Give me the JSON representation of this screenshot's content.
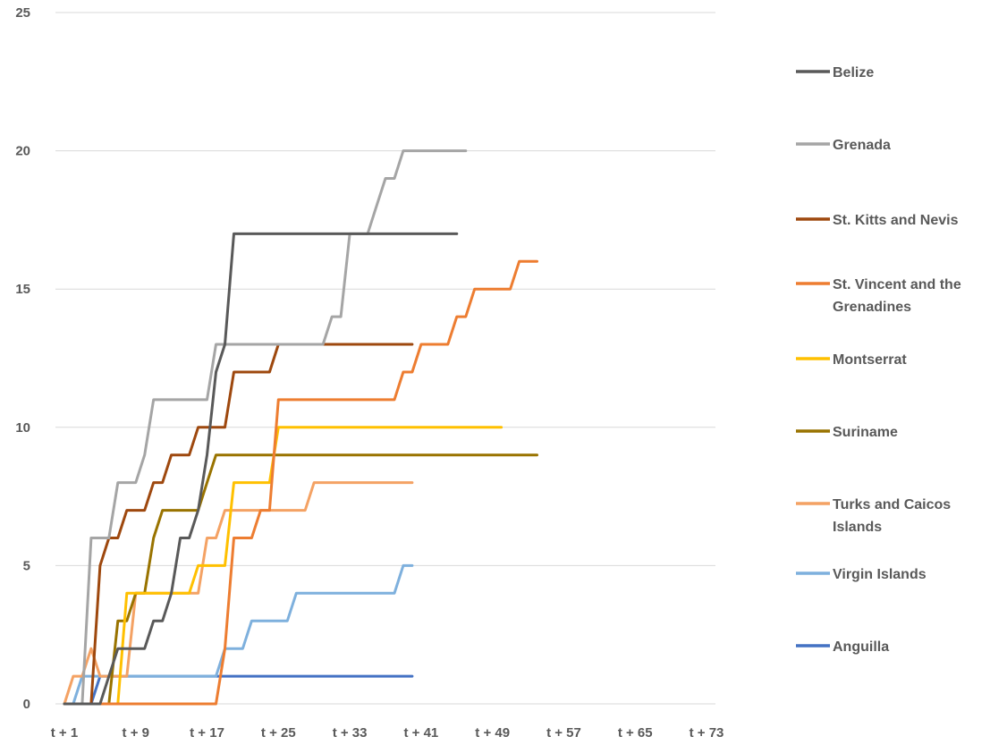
{
  "chart_data": {
    "type": "line",
    "title": "",
    "xlabel": "",
    "ylabel": "",
    "x_tick_labels": [
      "t + 1",
      "t + 9",
      "t + 17",
      "t + 25",
      "t + 33",
      "t + 41",
      "t + 49",
      "t + 57",
      "t + 65",
      "t + 73"
    ],
    "x_tick_values": [
      1,
      9,
      17,
      25,
      33,
      41,
      49,
      57,
      65,
      73
    ],
    "xlim": [
      0,
      74
    ],
    "ylim": [
      0,
      25
    ],
    "y_ticks": [
      0,
      5,
      10,
      15,
      20,
      25
    ],
    "grid": "horizontal",
    "legend_position": "right",
    "series": [
      {
        "name": "Belize",
        "color": "#595959",
        "x": [
          1,
          2,
          3,
          4,
          5,
          6,
          7,
          8,
          9,
          10,
          11,
          12,
          13,
          14,
          15,
          16,
          17,
          18,
          19,
          20,
          21,
          22,
          23,
          24,
          25,
          26,
          27,
          28,
          29,
          30,
          31,
          32,
          33,
          34,
          35,
          36,
          37,
          38,
          39,
          40,
          41,
          42,
          43,
          44,
          45
        ],
        "y": [
          0,
          0,
          0,
          0,
          0,
          1,
          2,
          2,
          2,
          2,
          3,
          3,
          4,
          6,
          6,
          7,
          9,
          12,
          13,
          17,
          17,
          17,
          17,
          17,
          17,
          17,
          17,
          17,
          17,
          17,
          17,
          17,
          17,
          17,
          17,
          17,
          17,
          17,
          17,
          17,
          17,
          17,
          17,
          17,
          17
        ]
      },
      {
        "name": "Grenada",
        "color": "#a5a5a5",
        "x": [
          1,
          2,
          3,
          4,
          5,
          6,
          7,
          8,
          9,
          10,
          11,
          12,
          13,
          14,
          15,
          16,
          17,
          18,
          19,
          20,
          21,
          22,
          23,
          24,
          25,
          26,
          27,
          28,
          29,
          30,
          31,
          32,
          33,
          34,
          35,
          36,
          37,
          38,
          39,
          40,
          41,
          42,
          43,
          44,
          45,
          46
        ],
        "y": [
          0,
          0,
          0,
          6,
          6,
          6,
          8,
          8,
          8,
          9,
          11,
          11,
          11,
          11,
          11,
          11,
          11,
          13,
          13,
          13,
          13,
          13,
          13,
          13,
          13,
          13,
          13,
          13,
          13,
          13,
          14,
          14,
          17,
          17,
          17,
          18,
          19,
          19,
          20,
          20,
          20,
          20,
          20,
          20,
          20,
          20
        ]
      },
      {
        "name": "St. Kitts and Nevis",
        "color": "#9e480e",
        "x": [
          1,
          2,
          3,
          4,
          5,
          6,
          7,
          8,
          9,
          10,
          11,
          12,
          13,
          14,
          15,
          16,
          17,
          18,
          19,
          20,
          21,
          22,
          23,
          24,
          25,
          26,
          27,
          28,
          29,
          30,
          31,
          32,
          33,
          34,
          35,
          36,
          37,
          38,
          39,
          40
        ],
        "y": [
          0,
          0,
          0,
          0,
          5,
          6,
          6,
          7,
          7,
          7,
          8,
          8,
          9,
          9,
          9,
          10,
          10,
          10,
          10,
          12,
          12,
          12,
          12,
          12,
          13,
          13,
          13,
          13,
          13,
          13,
          13,
          13,
          13,
          13,
          13,
          13,
          13,
          13,
          13,
          13
        ]
      },
      {
        "name": "St. Vincent and the Grenadines",
        "color": "#ed7d31",
        "x": [
          1,
          2,
          3,
          4,
          5,
          6,
          7,
          8,
          9,
          10,
          11,
          12,
          13,
          14,
          15,
          16,
          17,
          18,
          19,
          20,
          21,
          22,
          23,
          24,
          25,
          26,
          27,
          28,
          29,
          30,
          31,
          32,
          33,
          34,
          35,
          36,
          37,
          38,
          39,
          40,
          41,
          42,
          43,
          44,
          45,
          46,
          47,
          48,
          49,
          50,
          51,
          52,
          53,
          54
        ],
        "y": [
          0,
          0,
          0,
          0,
          0,
          0,
          0,
          0,
          0,
          0,
          0,
          0,
          0,
          0,
          0,
          0,
          0,
          0,
          2,
          6,
          6,
          6,
          7,
          7,
          11,
          11,
          11,
          11,
          11,
          11,
          11,
          11,
          11,
          11,
          11,
          11,
          11,
          11,
          12,
          12,
          13,
          13,
          13,
          13,
          14,
          14,
          15,
          15,
          15,
          15,
          15,
          16,
          16,
          16
        ]
      },
      {
        "name": "Montserrat",
        "color": "#ffc000",
        "x": [
          1,
          2,
          3,
          4,
          5,
          6,
          7,
          8,
          9,
          10,
          11,
          12,
          13,
          14,
          15,
          16,
          17,
          18,
          19,
          20,
          21,
          22,
          23,
          24,
          25,
          26,
          27,
          28,
          29,
          30,
          31,
          32,
          33,
          34,
          35,
          36,
          37,
          38,
          39,
          40,
          41,
          42,
          43,
          44,
          45,
          46,
          47,
          48,
          49,
          50
        ],
        "y": [
          0,
          0,
          0,
          0,
          0,
          0,
          0,
          4,
          4,
          4,
          4,
          4,
          4,
          4,
          4,
          5,
          5,
          5,
          5,
          8,
          8,
          8,
          8,
          8,
          10,
          10,
          10,
          10,
          10,
          10,
          10,
          10,
          10,
          10,
          10,
          10,
          10,
          10,
          10,
          10,
          10,
          10,
          10,
          10,
          10,
          10,
          10,
          10,
          10,
          10
        ]
      },
      {
        "name": "Suriname",
        "color": "#997300",
        "x": [
          1,
          2,
          3,
          4,
          5,
          6,
          7,
          8,
          9,
          10,
          11,
          12,
          13,
          14,
          15,
          16,
          17,
          18,
          19,
          20,
          21,
          22,
          23,
          24,
          25,
          26,
          27,
          28,
          29,
          30,
          31,
          32,
          33,
          34,
          35,
          36,
          37,
          38,
          39,
          40,
          41,
          42,
          43,
          44,
          45,
          46,
          47,
          48,
          49,
          50,
          51,
          52,
          53,
          54
        ],
        "y": [
          0,
          0,
          0,
          0,
          0,
          0,
          3,
          3,
          4,
          4,
          6,
          7,
          7,
          7,
          7,
          7,
          8,
          9,
          9,
          9,
          9,
          9,
          9,
          9,
          9,
          9,
          9,
          9,
          9,
          9,
          9,
          9,
          9,
          9,
          9,
          9,
          9,
          9,
          9,
          9,
          9,
          9,
          9,
          9,
          9,
          9,
          9,
          9,
          9,
          9,
          9,
          9,
          9,
          9
        ]
      },
      {
        "name": "Turks and Caicos Islands",
        "color": "#f4a264",
        "x": [
          1,
          2,
          3,
          4,
          5,
          6,
          7,
          8,
          9,
          10,
          11,
          12,
          13,
          14,
          15,
          16,
          17,
          18,
          19,
          20,
          21,
          22,
          23,
          24,
          25,
          26,
          27,
          28,
          29,
          30,
          31,
          32,
          33,
          34,
          35,
          36,
          37,
          38,
          39,
          40
        ],
        "y": [
          0,
          1,
          1,
          2,
          1,
          1,
          1,
          1,
          4,
          4,
          4,
          4,
          4,
          4,
          4,
          4,
          6,
          6,
          7,
          7,
          7,
          7,
          7,
          7,
          7,
          7,
          7,
          7,
          8,
          8,
          8,
          8,
          8,
          8,
          8,
          8,
          8,
          8,
          8,
          8
        ]
      },
      {
        "name": "Virgin Islands",
        "color": "#7eb0dd",
        "x": [
          1,
          2,
          3,
          4,
          5,
          6,
          7,
          8,
          9,
          10,
          11,
          12,
          13,
          14,
          15,
          16,
          17,
          18,
          19,
          20,
          21,
          22,
          23,
          24,
          25,
          26,
          27,
          28,
          29,
          30,
          31,
          32,
          33,
          34,
          35,
          36,
          37,
          38,
          39,
          40
        ],
        "y": [
          0,
          0,
          1,
          1,
          1,
          1,
          1,
          1,
          1,
          1,
          1,
          1,
          1,
          1,
          1,
          1,
          1,
          1,
          2,
          2,
          2,
          3,
          3,
          3,
          3,
          3,
          4,
          4,
          4,
          4,
          4,
          4,
          4,
          4,
          4,
          4,
          4,
          4,
          5,
          5
        ]
      },
      {
        "name": "Anguilla",
        "color": "#4472c4",
        "x": [
          1,
          2,
          3,
          4,
          5,
          6,
          7,
          8,
          9,
          10,
          11,
          12,
          13,
          14,
          15,
          16,
          17,
          18,
          19,
          20,
          21,
          22,
          23,
          24,
          25,
          26,
          27,
          28,
          29,
          30,
          31,
          32,
          33,
          34,
          35,
          36,
          37,
          38,
          39,
          40
        ],
        "y": [
          0,
          0,
          0,
          0,
          1,
          1,
          1,
          1,
          1,
          1,
          1,
          1,
          1,
          1,
          1,
          1,
          1,
          1,
          1,
          1,
          1,
          1,
          1,
          1,
          1,
          1,
          1,
          1,
          1,
          1,
          1,
          1,
          1,
          1,
          1,
          1,
          1,
          1,
          1,
          1
        ]
      }
    ]
  }
}
